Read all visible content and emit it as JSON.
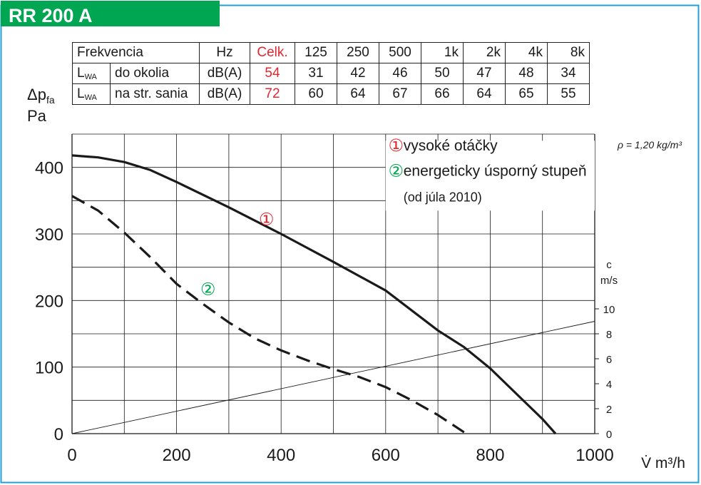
{
  "header": {
    "title": "RR 200 A"
  },
  "colors": {
    "frame": "#23a0d8",
    "header": "#00a651",
    "grid": "#1a1a1a",
    "red": "#e3262f",
    "green": "#00a651"
  },
  "table": {
    "header_row": {
      "label": "Frekvencia",
      "unit": "Hz",
      "total": "Celk.",
      "bands": [
        "125",
        "250",
        "500",
        "1k",
        "2k",
        "4k",
        "8k"
      ]
    },
    "rows": [
      {
        "symbol": "L",
        "subscript": "WA",
        "label": "do okolia",
        "unit": "dB(A)",
        "total": "54",
        "values": [
          "31",
          "42",
          "46",
          "50",
          "47",
          "48",
          "34"
        ]
      },
      {
        "symbol": "L",
        "subscript": "WA",
        "label": "na str. sania",
        "unit": "dB(A)",
        "total": "72",
        "values": [
          "60",
          "64",
          "67",
          "66",
          "64",
          "65",
          "55"
        ]
      }
    ]
  },
  "chart_data": {
    "type": "line",
    "ylabel": {
      "symbol": "Δp",
      "subscript": "fa",
      "unit": "Pa"
    },
    "xlabel": "V̇ m³/h",
    "xlim": [
      0,
      1000
    ],
    "ylim": [
      0,
      450
    ],
    "x_ticks": [
      "0",
      "200",
      "400",
      "600",
      "800",
      "1000"
    ],
    "y_ticks": [
      "0",
      "100",
      "200",
      "300",
      "400"
    ],
    "grid": true,
    "density_note": "ρ = 1,20 kg/m³",
    "series": [
      {
        "name": "vysoké otáčky",
        "marker": "①",
        "style": "solid",
        "color": "#1a1a1a",
        "label_color": "#e3262f",
        "x": [
          0,
          50,
          100,
          150,
          200,
          300,
          400,
          500,
          600,
          700,
          750,
          800,
          850,
          900,
          925
        ],
        "y": [
          418,
          415,
          408,
          396,
          378,
          340,
          300,
          258,
          215,
          155,
          130,
          98,
          60,
          22,
          0
        ]
      },
      {
        "name": "energeticky úsporný stupeň",
        "marker": "②",
        "style": "dashed",
        "color": "#1a1a1a",
        "label_color": "#00a651",
        "x": [
          0,
          50,
          100,
          150,
          200,
          250,
          300,
          350,
          400,
          450,
          500,
          550,
          600,
          650,
          700,
          750
        ],
        "y": [
          357,
          335,
          302,
          265,
          225,
          195,
          167,
          143,
          125,
          110,
          97,
          85,
          70,
          50,
          28,
          2
        ]
      },
      {
        "name": "c",
        "style": "thin",
        "color": "#1a1a1a",
        "x": [
          0,
          1000
        ],
        "y": [
          0,
          9
        ]
      }
    ],
    "legend": {
      "position": "top-right",
      "note": "(od júla 2010)"
    },
    "secondary_axis": {
      "label": "c",
      "unit": "m/s",
      "ylim": [
        0,
        24
      ],
      "ticks": [
        "0",
        "2",
        "4",
        "6",
        "8",
        "10"
      ]
    }
  }
}
